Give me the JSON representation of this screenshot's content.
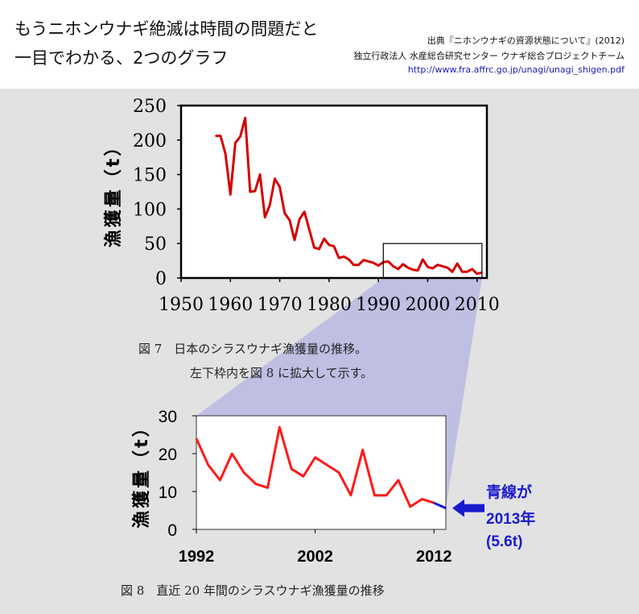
{
  "header": {
    "headline_line1": "もうニホンウナギ絶滅は時間の問題だと",
    "headline_line2": "一目でわかる、2つのグラフ",
    "source_line1": "出典『ニホンウナギの資源状態について』(2012)",
    "source_line2": "独立行政法人 水産総合研究センター ウナギ総合プロジェクトチーム",
    "source_url": "http://www.fra.affrc.go.jp/unagi/unagi_shigen.pdf"
  },
  "captions": {
    "fig7_line1": "図 7　日本のシラスウナギ漁獲量の推移。",
    "fig7_line2": "左下枠内を図 8 に拡大して示す。",
    "fig8": "図 8　直近 20 年間のシラスウナギ漁獲量の推移"
  },
  "annotation": {
    "line1": "青線が",
    "line2": "2013年",
    "line3": "(5.6t)"
  },
  "colors": {
    "series_red": "#d40000",
    "series_blue": "#1a1ad0",
    "highlight_fill": "#b9b9e3"
  },
  "chart_data": [
    {
      "type": "line",
      "title": "",
      "xlabel": "",
      "ylabel": "漁獲量（t）",
      "xlim": [
        1950,
        2012
      ],
      "ylim": [
        0,
        250
      ],
      "xticks": [
        1950,
        1960,
        1970,
        1980,
        1990,
        2000,
        2010
      ],
      "yticks": [
        0,
        50,
        100,
        150,
        200,
        250
      ],
      "grid": false,
      "highlight_box": {
        "x_from": 1991,
        "x_to": 2011,
        "y_from": 0,
        "y_to": 50
      },
      "series": [
        {
          "name": "シラスウナギ漁獲量",
          "color": "#d40000",
          "x": [
            1957,
            1958,
            1959,
            1960,
            1961,
            1962,
            1963,
            1964,
            1965,
            1966,
            1967,
            1968,
            1969,
            1970,
            1971,
            1972,
            1973,
            1974,
            1975,
            1976,
            1977,
            1978,
            1979,
            1980,
            1981,
            1982,
            1983,
            1984,
            1985,
            1986,
            1987,
            1988,
            1989,
            1990,
            1991,
            1992,
            1993,
            1994,
            1995,
            1996,
            1997,
            1998,
            1999,
            2000,
            2001,
            2002,
            2003,
            2004,
            2005,
            2006,
            2007,
            2008,
            2009,
            2010,
            2011
          ],
          "y": [
            206,
            206,
            180,
            121,
            196,
            205,
            232,
            125,
            126,
            150,
            88,
            106,
            144,
            132,
            94,
            84,
            55,
            85,
            96,
            70,
            44,
            42,
            57,
            48,
            46,
            29,
            31,
            27,
            19,
            19,
            26,
            24,
            22,
            18,
            23,
            24,
            17,
            13,
            20,
            15,
            12,
            11,
            27,
            16,
            14,
            19,
            17,
            15,
            9,
            21,
            9,
            9,
            13,
            6,
            8
          ]
        }
      ]
    },
    {
      "type": "line",
      "title": "",
      "xlabel": "",
      "ylabel": "漁獲量（t）",
      "xlim": [
        1992,
        2013
      ],
      "ylim": [
        0,
        30
      ],
      "xticks": [
        1992,
        2002,
        2012
      ],
      "yticks": [
        0,
        10,
        20,
        30
      ],
      "grid": false,
      "series": [
        {
          "name": "1992-2012",
          "color": "#ff1a1a",
          "x": [
            1992,
            1993,
            1994,
            1995,
            1996,
            1997,
            1998,
            1999,
            2000,
            2001,
            2002,
            2003,
            2004,
            2005,
            2006,
            2007,
            2008,
            2009,
            2010,
            2011,
            2012
          ],
          "y": [
            24,
            17,
            13,
            20,
            15,
            12,
            11,
            27,
            16,
            14,
            19,
            17,
            15,
            9,
            21,
            9,
            9,
            13,
            6,
            8,
            7
          ]
        },
        {
          "name": "2013",
          "color": "#1a1ad0",
          "x": [
            2012,
            2013
          ],
          "y": [
            7,
            5.6
          ]
        }
      ]
    }
  ]
}
